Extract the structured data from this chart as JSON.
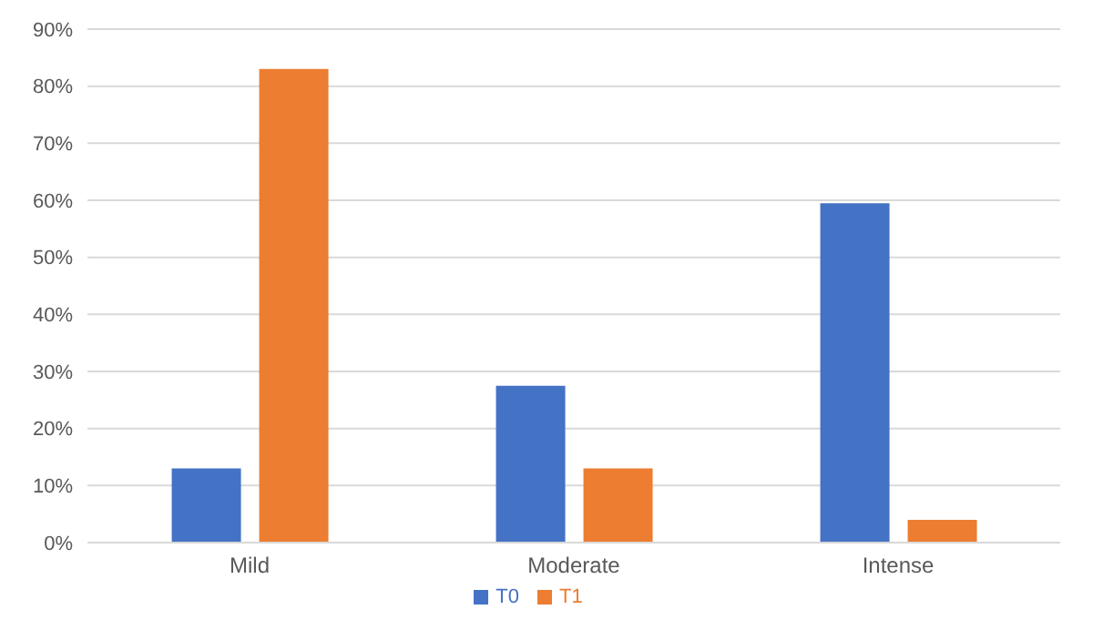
{
  "chart_data": {
    "type": "bar",
    "categories": [
      "Mild",
      "Moderate",
      "Intense"
    ],
    "series": [
      {
        "name": "T0",
        "color": "#4472c4",
        "values": [
          13,
          27.5,
          59.5
        ]
      },
      {
        "name": "T1",
        "color": "#ed7d31",
        "values": [
          83,
          13,
          4
        ]
      }
    ],
    "ylim": [
      0,
      90
    ],
    "yticks": [
      {
        "value": 0,
        "label": "0%"
      },
      {
        "value": 10,
        "label": "10%"
      },
      {
        "value": 20,
        "label": "20%"
      },
      {
        "value": 30,
        "label": "30%"
      },
      {
        "value": 40,
        "label": "40%"
      },
      {
        "value": 50,
        "label": "50%"
      },
      {
        "value": 60,
        "label": "60%"
      },
      {
        "value": 70,
        "label": "70%"
      },
      {
        "value": 80,
        "label": "80%"
      },
      {
        "value": 90,
        "label": "90%"
      }
    ],
    "grid": "y",
    "legend": "bottom"
  }
}
